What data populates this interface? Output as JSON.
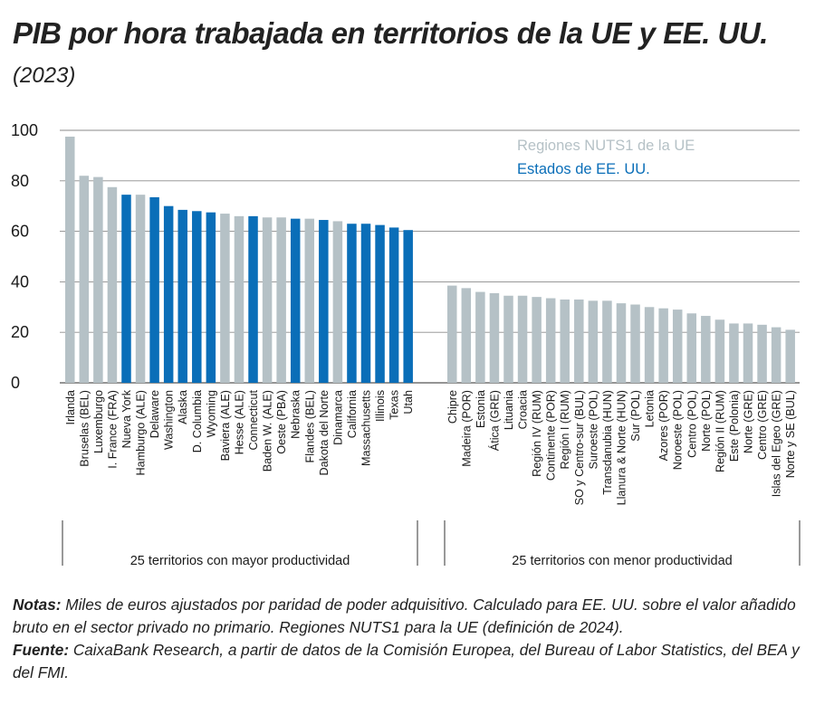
{
  "title": "PIB por hora trabajada en territorios de la UE y EE. UU.",
  "subtitle": "(2023)",
  "notes": {
    "notes_label": "Notas:",
    "notes_text": " Miles de euros ajustados por paridad de poder adquisitivo. Calculado para EE. UU. sobre el valor añadido bruto en el sector privado no primario. Regiones NUTS1 para la UE (definición de 2024).",
    "source_label": "Fuente:",
    "source_text": " CaixaBank Research, a partir de datos de la Comisión Europea, del Bureau of Labor Statistics, del BEA y del FMI."
  },
  "colors": {
    "eu": "#b5c1c6",
    "us": "#0a6eb8",
    "grid": "#8a8a8a",
    "text": "#1a1a1a"
  },
  "chart_data": {
    "type": "bar",
    "ylim": [
      0,
      100
    ],
    "yticks": [
      0,
      20,
      40,
      60,
      80,
      100
    ],
    "legend": [
      {
        "key": "eu",
        "label": "Regiones NUTS1 de la UE"
      },
      {
        "key": "us",
        "label": "Estados de EE. UU."
      }
    ],
    "groups": [
      {
        "label": "25 territorios con mayor productividad",
        "bars": [
          {
            "name": "Irlanda",
            "value": 97.5,
            "kind": "eu"
          },
          {
            "name": "Bruselas (BEL)",
            "value": 82,
            "kind": "eu"
          },
          {
            "name": "Luxemburgo",
            "value": 81.5,
            "kind": "eu"
          },
          {
            "name": "I. France (FRA)",
            "value": 77.5,
            "kind": "eu"
          },
          {
            "name": "Nueva York",
            "value": 74.5,
            "kind": "us"
          },
          {
            "name": "Hamburgo (ALE)",
            "value": 74.5,
            "kind": "eu"
          },
          {
            "name": "Delaware",
            "value": 73.5,
            "kind": "us"
          },
          {
            "name": "Washington",
            "value": 70,
            "kind": "us"
          },
          {
            "name": "Alaska",
            "value": 68.5,
            "kind": "us"
          },
          {
            "name": "D. Columbia",
            "value": 68,
            "kind": "us"
          },
          {
            "name": "Wyoming",
            "value": 67.5,
            "kind": "us"
          },
          {
            "name": "Baviera (ALE)",
            "value": 67,
            "kind": "eu"
          },
          {
            "name": "Hesse (ALE)",
            "value": 66,
            "kind": "eu"
          },
          {
            "name": "Connecticut",
            "value": 66,
            "kind": "us"
          },
          {
            "name": "Baden W. (ALE)",
            "value": 65.5,
            "kind": "eu"
          },
          {
            "name": "Oeste (PBA)",
            "value": 65.5,
            "kind": "eu"
          },
          {
            "name": "Nebraska",
            "value": 65,
            "kind": "us"
          },
          {
            "name": "Flandes (BEL)",
            "value": 65,
            "kind": "eu"
          },
          {
            "name": "Dakota del Norte",
            "value": 64.5,
            "kind": "us"
          },
          {
            "name": "Dinamarca",
            "value": 64,
            "kind": "eu"
          },
          {
            "name": "California",
            "value": 63,
            "kind": "us"
          },
          {
            "name": "Massachusetts",
            "value": 63,
            "kind": "us"
          },
          {
            "name": "Illinois",
            "value": 62.5,
            "kind": "us"
          },
          {
            "name": "Texas",
            "value": 61.5,
            "kind": "us"
          },
          {
            "name": "Utah",
            "value": 60.5,
            "kind": "us"
          }
        ]
      },
      {
        "label": "25 territorios con menor productividad",
        "bars": [
          {
            "name": "Chipre",
            "value": 38.5,
            "kind": "eu"
          },
          {
            "name": "Madeira (POR)",
            "value": 37.5,
            "kind": "eu"
          },
          {
            "name": "Estonia",
            "value": 36,
            "kind": "eu"
          },
          {
            "name": "Ática (GRE)",
            "value": 35.5,
            "kind": "eu"
          },
          {
            "name": "Lituania",
            "value": 34.5,
            "kind": "eu"
          },
          {
            "name": "Croacia",
            "value": 34.5,
            "kind": "eu"
          },
          {
            "name": "Región IV (RUM)",
            "value": 34,
            "kind": "eu"
          },
          {
            "name": "Continente (POR)",
            "value": 33.5,
            "kind": "eu"
          },
          {
            "name": "Región I (RUM)",
            "value": 33,
            "kind": "eu"
          },
          {
            "name": "SO y Centro-sur (BUL)",
            "value": 33,
            "kind": "eu"
          },
          {
            "name": "Suroeste (POL)",
            "value": 32.5,
            "kind": "eu"
          },
          {
            "name": "Transdanubia (HUN)",
            "value": 32.5,
            "kind": "eu"
          },
          {
            "name": "Llanura & Norte (HUN)",
            "value": 31.5,
            "kind": "eu"
          },
          {
            "name": "Sur (POL)",
            "value": 31,
            "kind": "eu"
          },
          {
            "name": "Letonia",
            "value": 30,
            "kind": "eu"
          },
          {
            "name": "Azores (POR)",
            "value": 29.5,
            "kind": "eu"
          },
          {
            "name": "Noroeste (POL)",
            "value": 29,
            "kind": "eu"
          },
          {
            "name": "Centro (POL)",
            "value": 27.5,
            "kind": "eu"
          },
          {
            "name": "Norte (POL)",
            "value": 26.5,
            "kind": "eu"
          },
          {
            "name": "Región II (RUM)",
            "value": 25,
            "kind": "eu"
          },
          {
            "name": "Este (Polonia)",
            "value": 23.5,
            "kind": "eu"
          },
          {
            "name": "Norte (GRE)",
            "value": 23.5,
            "kind": "eu"
          },
          {
            "name": "Centro (GRE)",
            "value": 23,
            "kind": "eu"
          },
          {
            "name": "Islas del Egeo (GRE)",
            "value": 22,
            "kind": "eu"
          },
          {
            "name": "Norte y SE (BUL)",
            "value": 21,
            "kind": "eu"
          }
        ]
      }
    ]
  }
}
